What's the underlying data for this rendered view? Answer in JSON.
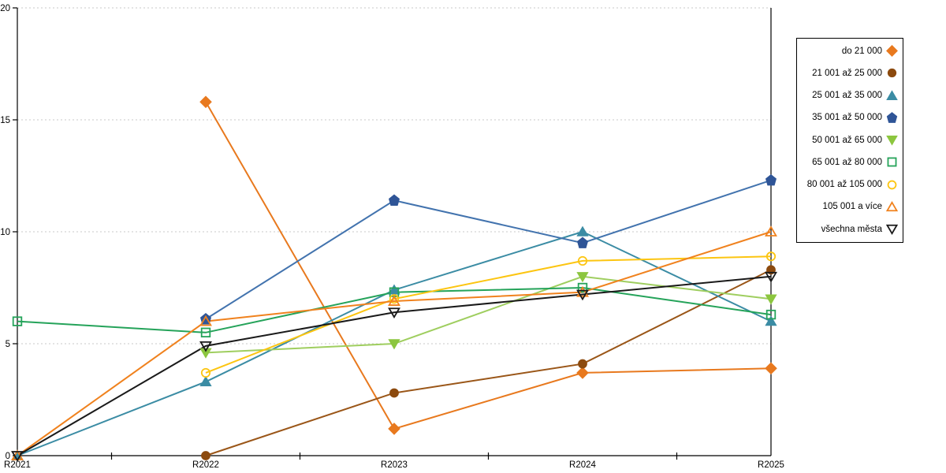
{
  "chart_data": {
    "type": "line",
    "title": "",
    "xlabel": "",
    "ylabel": "",
    "categories": [
      "R2021",
      "R2022",
      "R2023",
      "R2024",
      "R2025"
    ],
    "y_ticks": [
      0,
      5,
      10,
      15,
      20
    ],
    "y_tick_labels": [
      "0",
      "5",
      "10",
      "15",
      "20"
    ],
    "ylim": [
      0,
      20
    ],
    "grid": "horizontal-dotted",
    "gridline_color": "#c9c9c9",
    "axis_color": "#000000",
    "legend_position": "right-boxed",
    "series": [
      {
        "name": "do 21 000",
        "shape": "diamond",
        "fill": "filled",
        "color": "#E8791E",
        "values": [
          null,
          15.8,
          1.2,
          3.7,
          3.9
        ]
      },
      {
        "name": "21 001 až 25 000",
        "shape": "circle",
        "fill": "filled",
        "color": "#9A5618",
        "marker_color": "#8C4A0E",
        "values": [
          null,
          0,
          2.8,
          4.1,
          8.3
        ]
      },
      {
        "name": "25 001 až 35 000",
        "shape": "triangle-up",
        "fill": "filled",
        "color": "#3B8CA4",
        "values": [
          0,
          3.3,
          7.4,
          10,
          6
        ]
      },
      {
        "name": "35 001 až 50 000",
        "shape": "pentagon",
        "fill": "filled",
        "color": "#4273AE",
        "marker_color": "#2F5597",
        "values": [
          null,
          6.1,
          11.4,
          9.5,
          12.3
        ]
      },
      {
        "name": "50 001 až 65 000",
        "shape": "triangle-down",
        "fill": "filled",
        "color": "#9FCE5F",
        "marker_color": "#8CC63F",
        "values": [
          null,
          4.6,
          5,
          8,
          7
        ]
      },
      {
        "name": "65 001 až 80 000",
        "shape": "square",
        "fill": "open",
        "color": "#25A35A",
        "values": [
          6,
          5.5,
          7.3,
          7.5,
          6.3
        ]
      },
      {
        "name": "80 001 až 105 000",
        "shape": "circle",
        "fill": "open",
        "color": "#FCC511",
        "values": [
          null,
          3.7,
          7,
          8.7,
          8.9
        ]
      },
      {
        "name": "105 001 a více",
        "shape": "triangle-up",
        "fill": "open",
        "color": "#F0821E",
        "values": [
          0,
          6,
          6.9,
          7.3,
          10
        ]
      },
      {
        "name": "všechna města",
        "shape": "triangle-down",
        "fill": "open",
        "color": "#1A1A1A",
        "values": [
          0,
          4.9,
          6.4,
          7.2,
          8
        ]
      }
    ]
  }
}
